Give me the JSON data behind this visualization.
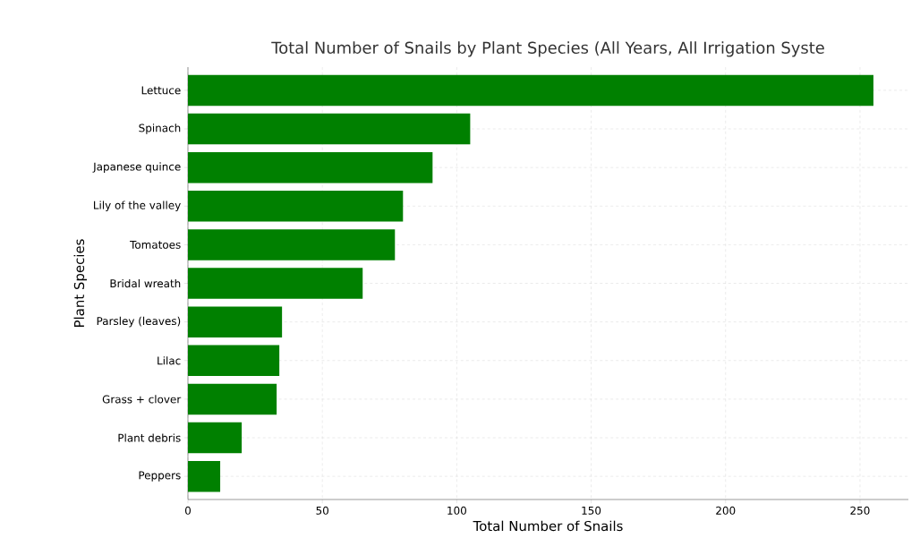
{
  "chart_data": {
    "type": "bar",
    "orientation": "horizontal",
    "title": "Total Number of Snails by Plant Species (All Years, All Irrigation Syste",
    "xlabel": "Total Number of Snails",
    "ylabel": "Plant Species",
    "categories": [
      "Lettuce",
      "Spinach",
      "Japanese quince",
      "Lily of the valley",
      "Tomatoes",
      "Bridal wreath",
      "Parsley (leaves)",
      "Lilac",
      "Grass + clover",
      "Plant debris",
      "Peppers"
    ],
    "values": [
      255,
      105,
      91,
      80,
      77,
      65,
      35,
      34,
      33,
      20,
      12
    ],
    "color": "#008000",
    "xlim": [
      0,
      268
    ],
    "xticks": [
      0,
      50,
      100,
      150,
      200,
      250
    ],
    "grid": true
  }
}
